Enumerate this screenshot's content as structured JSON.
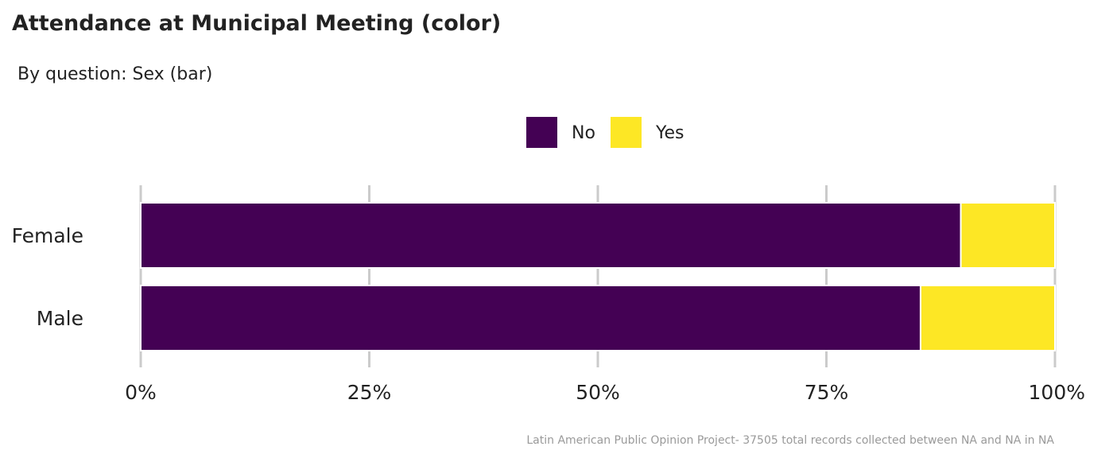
{
  "chart_data": {
    "type": "bar",
    "orientation": "horizontal",
    "stacked": true,
    "title": "Attendance at Municipal Meeting (color)",
    "subtitle": "By question: Sex (bar)",
    "caption": "Latin American Public Opinion Project- 37505 total records collected between NA and NA in  NA",
    "categories": [
      "Female",
      "Male"
    ],
    "series": [
      {
        "name": "No",
        "color": "#440154",
        "values": [
          0.897,
          0.853
        ]
      },
      {
        "name": "Yes",
        "color": "#FDE725",
        "values": [
          0.103,
          0.147
        ]
      }
    ],
    "xlim": [
      0,
      1
    ],
    "xticks": [
      0,
      0.25,
      0.5,
      0.75,
      1
    ],
    "xtick_labels": [
      "0%",
      "25%",
      "50%",
      "75%",
      "100%"
    ],
    "legend_position": "top",
    "grid": true
  }
}
